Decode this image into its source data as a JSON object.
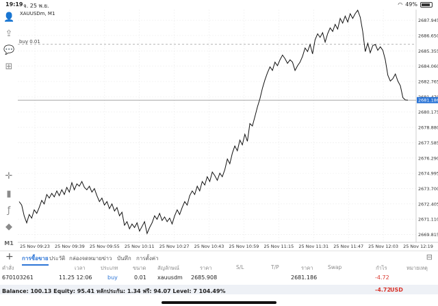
{
  "status_bar": {
    "time": "19:19",
    "date": "จ. 25 พ.ย.",
    "battery": "49%"
  },
  "toolbar": {
    "icons": [
      "person-icon",
      "share-icon",
      "chat-icon",
      "add-document-icon",
      "crosshair-icon",
      "candles-icon",
      "function-icon",
      "objects-icon"
    ],
    "timeframe": "M1"
  },
  "chart": {
    "symbol_label": "XAUUSDm, M1",
    "order_line_label": "buy 0.01",
    "current_price": "2681.186",
    "accent": "#2b74d6"
  },
  "chart_data": {
    "type": "line",
    "title": "XAUUSDm, M1",
    "x_ticks": [
      "25 Nov 09:23",
      "25 Nov 09:39",
      "25 Nov 09:55",
      "25 Nov 10:11",
      "25 Nov 10:27",
      "25 Nov 10:43",
      "25 Nov 10:59",
      "25 Nov 11:15",
      "25 Nov 11:31",
      "25 Nov 11:47",
      "25 Nov 12:03",
      "25 Nov 12:19"
    ],
    "y_ticks": [
      2687.945,
      2686.65,
      2685.355,
      2684.06,
      2682.765,
      2681.47,
      2680.175,
      2678.88,
      2677.585,
      2676.29,
      2674.995,
      2673.7,
      2672.405,
      2671.11,
      2669.815
    ],
    "ylim": [
      2669.15,
      2688.85
    ],
    "order_line": {
      "label": "buy 0.01",
      "price": 2685.908
    },
    "bid": 2681.186,
    "values": [
      2672.6,
      2672.3,
      2671.4,
      2670.8,
      2671.5,
      2671.2,
      2671.9,
      2671.6,
      2672.1,
      2672.7,
      2672.4,
      2673.2,
      2672.9,
      2673.3,
      2673.0,
      2673.5,
      2673.1,
      2673.6,
      2673.2,
      2673.8,
      2673.4,
      2674.2,
      2673.6,
      2674.1,
      2673.9,
      2674.3,
      2673.8,
      2673.6,
      2673.9,
      2673.4,
      2673.7,
      2673.1,
      2672.6,
      2672.9,
      2672.3,
      2672.6,
      2672.0,
      2672.4,
      2671.8,
      2672.1,
      2671.4,
      2671.7,
      2670.6,
      2670.9,
      2670.3,
      2670.7,
      2670.4,
      2670.8,
      2670.1,
      2670.5,
      2670.9,
      2669.9,
      2670.4,
      2670.8,
      2671.4,
      2671.1,
      2671.6,
      2671.0,
      2671.3,
      2670.9,
      2671.2,
      2670.7,
      2671.4,
      2671.9,
      2671.5,
      2672.1,
      2672.6,
      2672.3,
      2673.1,
      2673.5,
      2673.2,
      2673.9,
      2673.5,
      2674.3,
      2674.0,
      2674.7,
      2674.3,
      2675.1,
      2674.8,
      2674.4,
      2675.0,
      2674.7,
      2675.3,
      2676.2,
      2675.8,
      2676.7,
      2677.3,
      2676.9,
      2677.8,
      2677.4,
      2678.3,
      2677.7,
      2679.2,
      2679.0,
      2679.8,
      2680.6,
      2681.3,
      2682.2,
      2682.9,
      2683.5,
      2684.0,
      2683.7,
      2684.4,
      2684.1,
      2684.6,
      2685.0,
      2684.7,
      2684.3,
      2684.6,
      2684.4,
      2683.7,
      2684.1,
      2684.4,
      2684.9,
      2685.6,
      2685.3,
      2685.9,
      2685.1,
      2686.3,
      2686.8,
      2686.5,
      2686.9,
      2686.1,
      2686.8,
      2687.3,
      2687.0,
      2687.6,
      2687.2,
      2688.1,
      2687.7,
      2688.3,
      2687.8,
      2688.5,
      2688.1,
      2688.5,
      2688.8,
      2688.2,
      2687.0,
      2685.3,
      2686.0,
      2685.2,
      2685.8,
      2685.9,
      2685.4,
      2685.7,
      2685.4,
      2684.6,
      2683.3,
      2682.8,
      2683.0,
      2683.4,
      2682.8,
      2682.4,
      2681.4,
      2681.2,
      2681.186
    ],
    "grid": true
  },
  "tabs": {
    "items": [
      "การซื้อขาย",
      "ประวัติ",
      "กล่องจดหมาย",
      "ข่าว",
      "บันทึก",
      "การตั้งค่า"
    ],
    "active": 0
  },
  "table": {
    "headers": [
      "คำสั่ง",
      "เวลา",
      "ประเภท",
      "ขนาด",
      "สัญลักษณ์",
      "ราคา",
      "S/L",
      "T/P",
      "ราคา",
      "Swap",
      "กำไร",
      "หมายเหตุ"
    ],
    "row": {
      "order": "670103261",
      "time": "11.25 12:06",
      "type": "buy",
      "size": "0.01",
      "symbol": "xauusdm",
      "price": "2685.908",
      "sl": "",
      "tp": "",
      "current": "2681.186",
      "swap": "",
      "profit": "-4.72",
      "note": ""
    }
  },
  "balance": {
    "text": "Balance: 100.13 Equity: 95.41 หลักประกัน: 1.34 ฟรี: 94.07 Level: 7 104.49%",
    "profit": "-4.72",
    "currency": "USD"
  }
}
